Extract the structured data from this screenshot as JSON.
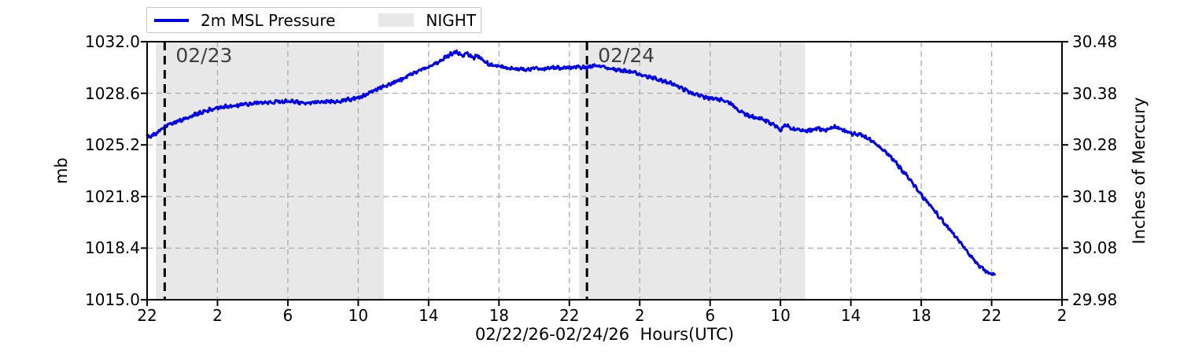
{
  "chart_data": {
    "type": "line",
    "xlabel": "02/22/26-02/24/26  Hours(UTC)",
    "ylabel_left": "mb",
    "ylabel_right": "Inches of Mercury",
    "x_range_hours": [
      0,
      52
    ],
    "y_range": [
      1015.0,
      1032.0
    ],
    "x_ticks": [
      {
        "hour": 0,
        "label": "22"
      },
      {
        "hour": 4,
        "label": "2"
      },
      {
        "hour": 8,
        "label": "6"
      },
      {
        "hour": 12,
        "label": "10"
      },
      {
        "hour": 16,
        "label": "14"
      },
      {
        "hour": 20,
        "label": "18"
      },
      {
        "hour": 24,
        "label": "22"
      },
      {
        "hour": 28,
        "label": "2"
      },
      {
        "hour": 32,
        "label": "6"
      },
      {
        "hour": 36,
        "label": "10"
      },
      {
        "hour": 40,
        "label": "14"
      },
      {
        "hour": 44,
        "label": "18"
      },
      {
        "hour": 48,
        "label": "22"
      },
      {
        "hour": 52,
        "label": "2"
      }
    ],
    "y_ticks": [
      {
        "mb": 1032.0,
        "label_left": "1032.0",
        "label_right": "30.48"
      },
      {
        "mb": 1028.6,
        "label_left": "1028.6",
        "label_right": "30.38"
      },
      {
        "mb": 1025.2,
        "label_left": "1025.2",
        "label_right": "30.28"
      },
      {
        "mb": 1021.8,
        "label_left": "1021.8",
        "label_right": "30.18"
      },
      {
        "mb": 1018.4,
        "label_left": "1018.4",
        "label_right": "30.08"
      },
      {
        "mb": 1015.0,
        "label_left": "1015.0",
        "label_right": "29.98"
      }
    ],
    "night_regions": [
      [
        0.5,
        13.45
      ],
      [
        24.55,
        37.4
      ]
    ],
    "day_lines": [
      {
        "hour": 1.0,
        "label": "02/23"
      },
      {
        "hour": 25.0,
        "label": "02/24"
      }
    ],
    "legend": {
      "pressure_label": "2m MSL Pressure",
      "night_label": "NIGHT"
    },
    "colors": {
      "line": "#0000ee",
      "night": "#e8e8e8",
      "grid": "#b0b0b0",
      "annotation": "#404040"
    },
    "series": [
      {
        "name": "2m MSL Pressure",
        "units": "mb",
        "points": [
          [
            0,
            1025.75
          ],
          [
            0.5,
            1025.9
          ],
          [
            1,
            1026.4
          ],
          [
            1.5,
            1026.65
          ],
          [
            2,
            1026.85
          ],
          [
            2.5,
            1027.1
          ],
          [
            3,
            1027.3
          ],
          [
            3.5,
            1027.5
          ],
          [
            4,
            1027.65
          ],
          [
            5,
            1027.8
          ],
          [
            6,
            1027.95
          ],
          [
            7,
            1028.0
          ],
          [
            8,
            1028.1
          ],
          [
            9,
            1027.95
          ],
          [
            10,
            1028.05
          ],
          [
            11,
            1028.1
          ],
          [
            11.5,
            1028.2
          ],
          [
            12,
            1028.3
          ],
          [
            12.5,
            1028.55
          ],
          [
            13,
            1028.85
          ],
          [
            13.5,
            1029.1
          ],
          [
            14,
            1029.3
          ],
          [
            14.5,
            1029.55
          ],
          [
            15,
            1029.85
          ],
          [
            15.5,
            1030.1
          ],
          [
            16,
            1030.35
          ],
          [
            16.5,
            1030.65
          ],
          [
            17,
            1031.0
          ],
          [
            17.3,
            1031.2
          ],
          [
            17.6,
            1031.35
          ],
          [
            17.9,
            1031.05
          ],
          [
            18.2,
            1031.25
          ],
          [
            18.5,
            1030.9
          ],
          [
            18.8,
            1031.1
          ],
          [
            19.1,
            1030.75
          ],
          [
            19.5,
            1030.5
          ],
          [
            20,
            1030.35
          ],
          [
            20.5,
            1030.25
          ],
          [
            21,
            1030.2
          ],
          [
            21.5,
            1030.15
          ],
          [
            22,
            1030.25
          ],
          [
            22.5,
            1030.2
          ],
          [
            23,
            1030.3
          ],
          [
            23.5,
            1030.25
          ],
          [
            24,
            1030.3
          ],
          [
            24.5,
            1030.35
          ],
          [
            25,
            1030.3
          ],
          [
            25.5,
            1030.45
          ],
          [
            26,
            1030.3
          ],
          [
            26.5,
            1030.2
          ],
          [
            27,
            1030.1
          ],
          [
            27.5,
            1030.0
          ],
          [
            28,
            1029.85
          ],
          [
            28.5,
            1029.7
          ],
          [
            29,
            1029.55
          ],
          [
            29.5,
            1029.35
          ],
          [
            30,
            1029.15
          ],
          [
            30.5,
            1028.85
          ],
          [
            31,
            1028.6
          ],
          [
            31.5,
            1028.4
          ],
          [
            32,
            1028.25
          ],
          [
            32.5,
            1028.2
          ],
          [
            33,
            1028.1
          ],
          [
            33.5,
            1027.6
          ],
          [
            34,
            1027.2
          ],
          [
            34.5,
            1027.0
          ],
          [
            35,
            1026.9
          ],
          [
            35.5,
            1026.6
          ],
          [
            36,
            1026.2
          ],
          [
            36.3,
            1026.55
          ],
          [
            36.6,
            1026.25
          ],
          [
            37,
            1026.2
          ],
          [
            37.5,
            1026.1
          ],
          [
            38,
            1026.3
          ],
          [
            38.5,
            1026.15
          ],
          [
            39,
            1026.4
          ],
          [
            39.5,
            1026.2
          ],
          [
            40,
            1025.95
          ],
          [
            40.5,
            1025.9
          ],
          [
            41,
            1025.6
          ],
          [
            41.5,
            1025.2
          ],
          [
            42,
            1024.7
          ],
          [
            42.5,
            1024.1
          ],
          [
            43,
            1023.4
          ],
          [
            43.5,
            1022.7
          ],
          [
            44,
            1021.9
          ],
          [
            44.5,
            1021.2
          ],
          [
            45,
            1020.5
          ],
          [
            45.5,
            1019.8
          ],
          [
            46,
            1019.1
          ],
          [
            46.5,
            1018.35
          ],
          [
            47,
            1017.6
          ],
          [
            47.5,
            1017.0
          ],
          [
            47.9,
            1016.7
          ],
          [
            48.2,
            1016.65
          ]
        ]
      }
    ],
    "grid": true,
    "legend_position": "top-left"
  }
}
